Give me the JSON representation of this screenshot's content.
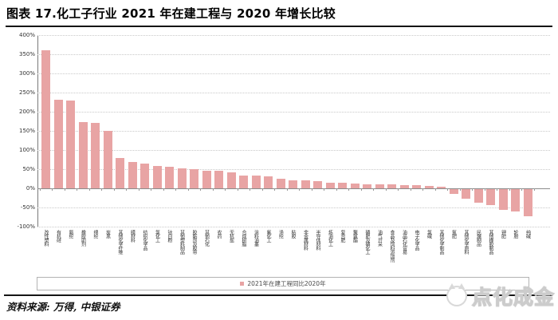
{
  "page": {
    "title": "图表 17.化工子行业 2021 年在建工程与 2020 年增长比较",
    "source": "资料来源: 万得, 中银证券",
    "watermark": "点化成金"
  },
  "legend": {
    "label": "2021年在建工程同比2020年"
  },
  "colors": {
    "bar": "#e8a4a4",
    "gridline": "#c9c9c9",
    "zero_axis": "#8c8c8c",
    "rule": "#151515",
    "axis_text": "#333333"
  },
  "chart_data": {
    "type": "bar",
    "title": "图表 17.化工子行业 2021 年在建工程与 2020 年增长比较",
    "xlabel": "",
    "ylabel": "",
    "ylim": [
      -100,
      400
    ],
    "ytick_step": 50,
    "ytick_labels": [
      "400%",
      "350%",
      "300%",
      "250%",
      "200%",
      "150%",
      "100%",
      "50%",
      "0%",
      "-50%",
      "-100%"
    ],
    "grid": true,
    "legend_position": "bottom",
    "legend_entries": [
      "2021年在建工程同比2020年"
    ],
    "categories": [
      "改性塑料",
      "有机硅",
      "氨纶",
      "橡胶助剂",
      "绵纶",
      "炭黑",
      "其他化学纤维",
      "膜材料",
      "纺织化学品",
      "氯化工",
      "钛白粉",
      "其他塑料制品",
      "胶黏剂及胶带",
      "其他石化",
      "农药",
      "无机盐",
      "合成树脂",
      "涂料油墨",
      "氟化工",
      "涤纶",
      "粘胶",
      "非金属材料",
      "半导体材料",
      "炼油化工",
      "复合肥",
      "聚氨酯",
      "磷肥及磷化工",
      "油气开采",
      "食品及饲料添加剂",
      "油品石化贸易",
      "电子化学品",
      "氯碱",
      "其他化学制品",
      "氮肥",
      "其他化学原料",
      "民爆制品",
      "其他橡胶制品",
      "钾肥",
      "轮胎",
      "纯碱"
    ],
    "values": [
      360,
      231,
      229,
      172,
      170,
      149,
      79,
      68,
      64,
      59,
      56,
      52,
      50,
      46,
      45,
      42,
      34,
      33,
      31,
      26,
      21,
      20,
      19,
      15,
      14,
      12,
      11,
      11,
      10,
      9,
      8,
      7,
      4,
      -12,
      -26,
      -35,
      -42,
      -54,
      -58,
      -71
    ],
    "unit": "%"
  }
}
